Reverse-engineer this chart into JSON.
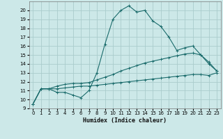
{
  "xlabel": "Humidex (Indice chaleur)",
  "background_color": "#cce8e8",
  "grid_color": "#aacccc",
  "line_color": "#1a6b6b",
  "xlim": [
    -0.5,
    23.5
  ],
  "ylim": [
    9,
    21
  ],
  "xticks": [
    0,
    1,
    2,
    3,
    4,
    5,
    6,
    7,
    8,
    9,
    10,
    11,
    12,
    13,
    14,
    15,
    16,
    17,
    18,
    19,
    20,
    21,
    22,
    23
  ],
  "yticks": [
    9,
    10,
    11,
    12,
    13,
    14,
    15,
    16,
    17,
    18,
    19,
    20
  ],
  "series": [
    {
      "x": [
        0,
        1,
        2,
        3,
        4,
        5,
        6,
        7,
        8,
        9,
        10,
        11,
        12,
        13,
        14,
        15,
        16,
        17,
        18,
        19,
        20,
        21,
        22,
        23
      ],
      "y": [
        9.5,
        11.2,
        11.2,
        10.8,
        10.8,
        10.5,
        10.2,
        11.0,
        13.0,
        16.2,
        19.0,
        20.0,
        20.5,
        19.8,
        20.0,
        18.8,
        18.2,
        17.0,
        15.5,
        15.8,
        16.0,
        15.0,
        14.0,
        13.2
      ]
    },
    {
      "x": [
        0,
        1,
        2,
        3,
        4,
        5,
        6,
        7,
        8,
        9,
        10,
        11,
        12,
        13,
        14,
        15,
        16,
        17,
        18,
        19,
        20,
        21,
        22,
        23
      ],
      "y": [
        9.5,
        11.2,
        11.2,
        11.5,
        11.7,
        11.8,
        11.8,
        11.9,
        12.2,
        12.5,
        12.8,
        13.2,
        13.5,
        13.8,
        14.1,
        14.3,
        14.5,
        14.7,
        14.9,
        15.1,
        15.2,
        15.0,
        14.2,
        13.2
      ]
    },
    {
      "x": [
        0,
        1,
        2,
        3,
        4,
        5,
        6,
        7,
        8,
        9,
        10,
        11,
        12,
        13,
        14,
        15,
        16,
        17,
        18,
        19,
        20,
        21,
        22,
        23
      ],
      "y": [
        9.5,
        11.2,
        11.2,
        11.2,
        11.3,
        11.4,
        11.5,
        11.5,
        11.6,
        11.7,
        11.8,
        11.9,
        12.0,
        12.1,
        12.2,
        12.3,
        12.4,
        12.5,
        12.6,
        12.7,
        12.8,
        12.8,
        12.7,
        13.0
      ]
    }
  ]
}
